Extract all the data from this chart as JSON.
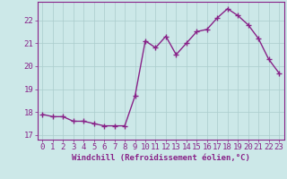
{
  "x": [
    0,
    1,
    2,
    3,
    4,
    5,
    6,
    7,
    8,
    9,
    10,
    11,
    12,
    13,
    14,
    15,
    16,
    17,
    18,
    19,
    20,
    21,
    22,
    23
  ],
  "y": [
    17.9,
    17.8,
    17.8,
    17.6,
    17.6,
    17.5,
    17.4,
    17.4,
    17.4,
    18.7,
    21.1,
    20.8,
    21.3,
    20.5,
    21.0,
    21.5,
    21.6,
    22.1,
    22.5,
    22.2,
    21.8,
    21.2,
    20.3,
    19.7
  ],
  "line_color": "#882288",
  "marker": "+",
  "marker_size": 4,
  "linewidth": 1.0,
  "background_color": "#cce8e8",
  "grid_color": "#aacccc",
  "xlabel": "Windchill (Refroidissement éolien,°C)",
  "xlim": [
    -0.5,
    23.5
  ],
  "ylim": [
    16.8,
    22.8
  ],
  "yticks": [
    17,
    18,
    19,
    20,
    21,
    22
  ],
  "xticks": [
    0,
    1,
    2,
    3,
    4,
    5,
    6,
    7,
    8,
    9,
    10,
    11,
    12,
    13,
    14,
    15,
    16,
    17,
    18,
    19,
    20,
    21,
    22,
    23
  ],
  "xlabel_fontsize": 6.5,
  "tick_fontsize": 6.5
}
